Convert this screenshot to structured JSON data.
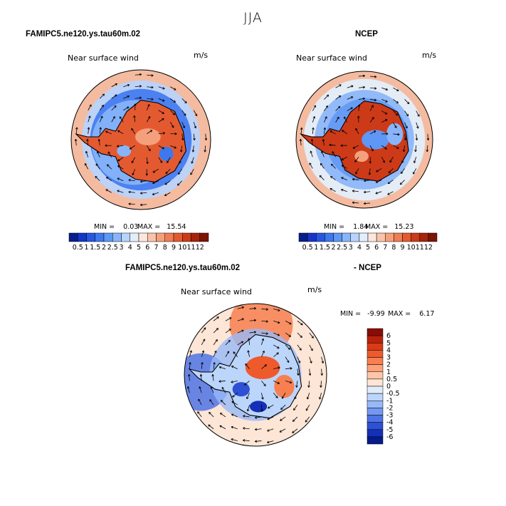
{
  "page": {
    "title": "JJA"
  },
  "chart_data": [
    {
      "type": "heatmap",
      "subtype": "polar-stereographic vector field",
      "case_title": "FAMIPC5.ne120.ys.tau60m.02",
      "panel_label": "Near surface wind",
      "units": "m/s",
      "min_text": "MIN =    0.03",
      "max_text": "MAX =   15.54",
      "colorbar_labels": [
        "0.5",
        "1",
        "1.5",
        "2",
        "2.5",
        "3",
        "4",
        "5",
        "6",
        "7",
        "8",
        "9",
        "10",
        "11",
        "12"
      ],
      "colorbar_colors": [
        "#081d8c",
        "#1535c7",
        "#2757e0",
        "#3e78ee",
        "#5e97f5",
        "#88b5fa",
        "#b8d3fc",
        "#e3eefb",
        "#fbe7dc",
        "#f9c4a9",
        "#f5a07c",
        "#ef7d55",
        "#e45a30",
        "#cc3a18",
        "#a6240b",
        "#7b1505"
      ]
    },
    {
      "type": "heatmap",
      "subtype": "polar-stereographic vector field",
      "case_title": "NCEP",
      "panel_label": "Near surface wind",
      "units": "m/s",
      "min_text": "MIN =    1.84",
      "max_text": "MAX =   15.23",
      "colorbar_labels": [
        "0.5",
        "1",
        "1.5",
        "2",
        "2.5",
        "3",
        "4",
        "5",
        "6",
        "7",
        "8",
        "9",
        "10",
        "11",
        "12"
      ],
      "colorbar_colors": [
        "#081d8c",
        "#1535c7",
        "#2757e0",
        "#3e78ee",
        "#5e97f5",
        "#88b5fa",
        "#b8d3fc",
        "#e3eefb",
        "#fbe7dc",
        "#f9c4a9",
        "#f5a07c",
        "#ef7d55",
        "#e45a30",
        "#cc3a18",
        "#a6240b",
        "#7b1505"
      ]
    },
    {
      "type": "heatmap",
      "subtype": "polar-stereographic difference vector field",
      "case_title_a": "FAMIPC5.ne120.ys.tau60m.02",
      "case_title_b": "- NCEP",
      "panel_label": "Near surface wind",
      "units": "m/s",
      "min_text": "MIN =   -9.99",
      "max_text": "MAX =    6.17",
      "colorbar_labels": [
        "6",
        "5",
        "4",
        "3",
        "2",
        "1",
        "0.5",
        "0",
        "-0.5",
        "-1",
        "-2",
        "-3",
        "-4",
        "-5",
        "-6"
      ],
      "colorbar_colors": [
        "#8a0c05",
        "#b8220c",
        "#d93a17",
        "#ee5a2c",
        "#f77f50",
        "#fba27a",
        "#fdc6a8",
        "#fde6d6",
        "#e0ecfb",
        "#bcd5fb",
        "#97b9f8",
        "#7498f2",
        "#4f73e6",
        "#2d50d5",
        "#1430b8",
        "#061a8c"
      ]
    }
  ]
}
